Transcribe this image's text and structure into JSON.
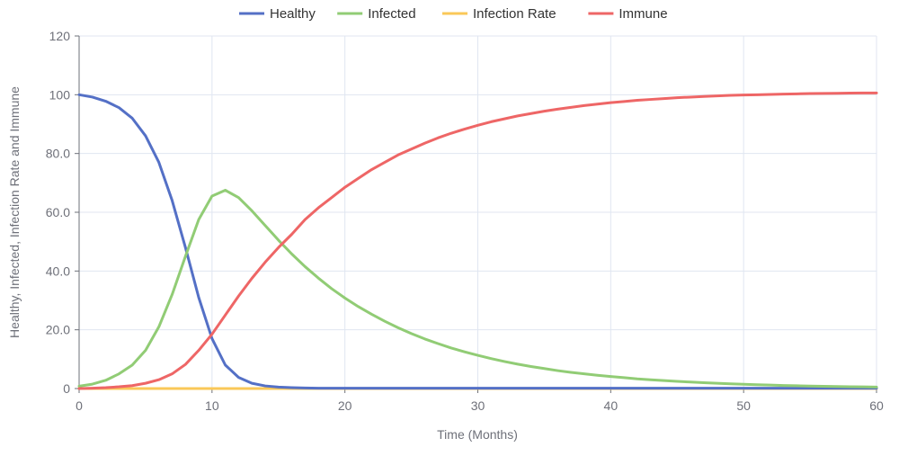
{
  "chart_data": {
    "type": "line",
    "title": "",
    "xlabel": "Time (Months)",
    "ylabel": "Healthy, Infected, Infection Rate and Immune",
    "xlim": [
      0,
      60
    ],
    "ylim": [
      0,
      120
    ],
    "x_ticks": [
      "0",
      "10",
      "20",
      "30",
      "40",
      "50",
      "60"
    ],
    "y_ticks": [
      "0",
      "20.0",
      "40.0",
      "60.0",
      "80.0",
      "100",
      "120"
    ],
    "grid": true,
    "legend_position": "top-center",
    "x": [
      0,
      1,
      2,
      3,
      4,
      5,
      6,
      7,
      8,
      9,
      10,
      11,
      12,
      13,
      14,
      15,
      16,
      17,
      18,
      19,
      20,
      21,
      22,
      23,
      24,
      25,
      26,
      27,
      28,
      29,
      30,
      31,
      32,
      33,
      34,
      35,
      36,
      37,
      38,
      39,
      40,
      41,
      42,
      43,
      44,
      45,
      46,
      47,
      48,
      49,
      50,
      51,
      52,
      53,
      54,
      55,
      56,
      57,
      58,
      59,
      60
    ],
    "series": [
      {
        "name": "Healthy",
        "color": "#5470c6",
        "values": [
          100,
          99.2,
          97.8,
          95.6,
          92,
          86,
          77,
          64,
          48,
          31,
          17,
          8,
          3.8,
          1.8,
          0.9,
          0.5,
          0.3,
          0.2,
          0.1,
          0.1,
          0.1,
          0.1,
          0.1,
          0.1,
          0.1,
          0.1,
          0.1,
          0.1,
          0.1,
          0.1,
          0.1,
          0.1,
          0.1,
          0.1,
          0.1,
          0.1,
          0.1,
          0.1,
          0.1,
          0.1,
          0.1,
          0.1,
          0.1,
          0.1,
          0.1,
          0.1,
          0.1,
          0.1,
          0.1,
          0.1,
          0.1,
          0.1,
          0.1,
          0.1,
          0.1,
          0.1,
          0.1,
          0.1,
          0.1,
          0.1,
          0.1
        ]
      },
      {
        "name": "Infected",
        "color": "#91cc75",
        "values": [
          0.8,
          1.5,
          2.8,
          5,
          8,
          13,
          21,
          32,
          45,
          57.5,
          65.5,
          67.5,
          65,
          60.5,
          55.5,
          50.5,
          45.8,
          41.5,
          37.6,
          34,
          30.8,
          27.9,
          25.3,
          22.9,
          20.7,
          18.7,
          16.9,
          15.3,
          13.8,
          12.5,
          11.3,
          10.2,
          9.2,
          8.3,
          7.5,
          6.8,
          6.1,
          5.5,
          5,
          4.5,
          4.1,
          3.7,
          3.3,
          3,
          2.7,
          2.45,
          2.2,
          2,
          1.8,
          1.6,
          1.45,
          1.3,
          1.2,
          1.05,
          0.95,
          0.85,
          0.77,
          0.7,
          0.63,
          0.57,
          0.5
        ]
      },
      {
        "name": "Infection Rate",
        "color": "#fac858",
        "values": [
          0,
          0,
          0,
          0,
          0,
          0,
          0,
          0,
          0,
          0,
          0,
          0,
          0,
          0,
          0,
          0,
          0,
          0,
          0,
          0,
          0,
          0,
          0,
          0,
          0,
          0,
          0,
          0,
          0,
          0,
          0,
          0,
          0,
          0,
          0,
          0,
          0,
          0,
          0,
          0,
          0,
          0,
          0,
          0,
          0,
          0,
          0,
          0,
          0,
          0,
          0,
          0,
          0,
          0,
          0,
          0,
          0,
          0,
          0,
          0,
          0
        ]
      },
      {
        "name": "Immune",
        "color": "#ee6666",
        "values": [
          0,
          0.1,
          0.3,
          0.6,
          1.0,
          1.8,
          3.0,
          5.0,
          8.2,
          13,
          18.5,
          25,
          31.5,
          37.5,
          43,
          48,
          52.5,
          57.5,
          61.5,
          65,
          68.5,
          71.5,
          74.5,
          77,
          79.5,
          81.5,
          83.5,
          85.3,
          86.9,
          88.3,
          89.6,
          90.8,
          91.8,
          92.8,
          93.6,
          94.4,
          95.1,
          95.7,
          96.3,
          96.8,
          97.3,
          97.7,
          98.1,
          98.4,
          98.7,
          99,
          99.2,
          99.4,
          99.6,
          99.8,
          99.9,
          100,
          100.1,
          100.2,
          100.3,
          100.4,
          100.45,
          100.5,
          100.55,
          100.6,
          100.6
        ]
      }
    ]
  }
}
